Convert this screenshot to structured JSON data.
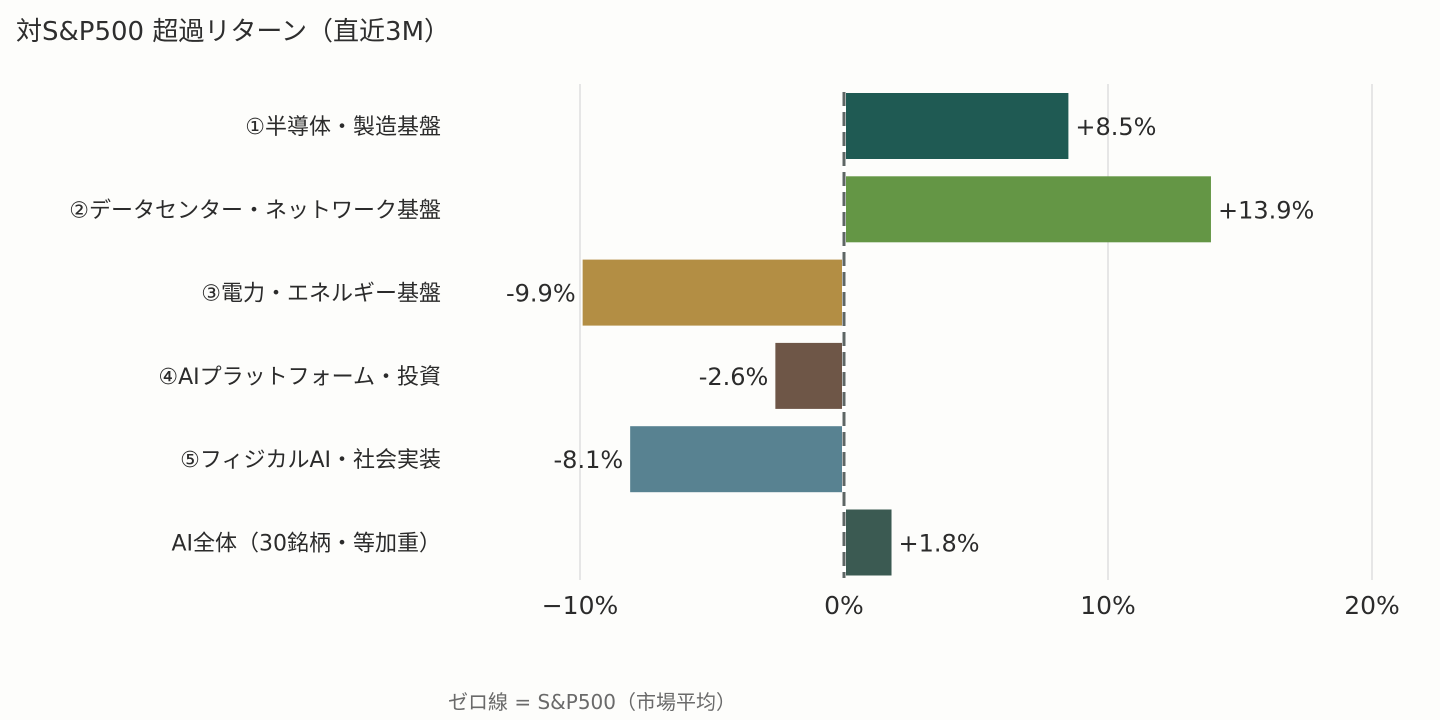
{
  "chart_data": {
    "type": "bar",
    "orientation": "horizontal",
    "title": "対S&P500 超過リターン（直近3M）",
    "caption": "ゼロ線 = S&P500（市場平均）",
    "xlabel": "",
    "ylabel": "",
    "xlim": [
      -15,
      20
    ],
    "x_ticks": [
      {
        "value": -10,
        "label": "−10%"
      },
      {
        "value": 0,
        "label": "0%"
      },
      {
        "value": 10,
        "label": "10%"
      },
      {
        "value": 20,
        "label": "20%"
      }
    ],
    "grid": "vertical",
    "zero_line": "dashed",
    "categories": [
      "①半導体・製造基盤",
      "②データセンター・ネットワーク基盤",
      "③電力・エネルギー基盤",
      "④AIプラットフォーム・投資",
      "⑤フィジカルAI・社会実装",
      "AI全体（30銘柄・等加重）"
    ],
    "values": [
      8.5,
      13.9,
      -9.9,
      -2.6,
      -8.1,
      1.8
    ],
    "value_labels": [
      "+8.5%",
      "+13.9%",
      "-9.9%",
      "-2.6%",
      "-8.1%",
      "+1.8%"
    ],
    "colors": [
      "#1f5a53",
      "#649645",
      "#b38e44",
      "#6e5647",
      "#588291",
      "#3b5a52"
    ]
  }
}
